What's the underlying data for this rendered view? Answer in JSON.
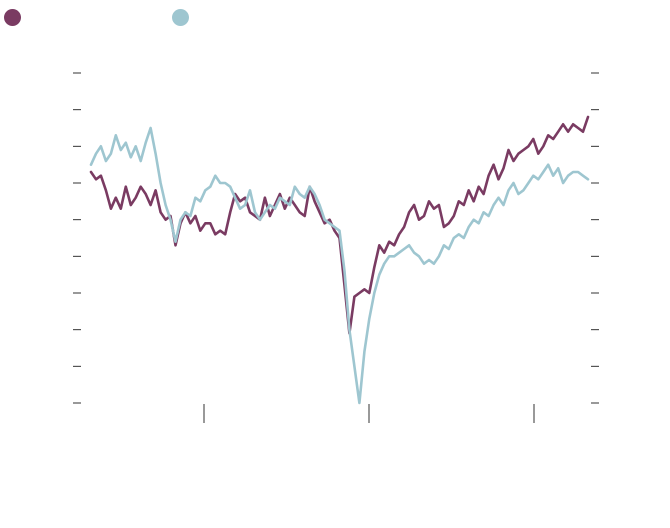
{
  "chart_data": {
    "type": "line",
    "title": "",
    "xlabel": "",
    "ylabel": "",
    "grid": false,
    "legend_position": "top-left",
    "x_ticks_count": 3,
    "y_ticks_count": 10,
    "xlim": [
      0,
      100
    ],
    "ylim": [
      0,
      9
    ],
    "series": [
      {
        "color": "#7a3b62",
        "x": [
          0,
          1,
          2,
          3,
          4,
          5,
          6,
          7,
          8,
          9,
          10,
          11,
          12,
          13,
          14,
          15,
          16,
          17,
          18,
          19,
          20,
          21,
          22,
          23,
          24,
          25,
          26,
          27,
          28,
          29,
          30,
          31,
          32,
          33,
          34,
          35,
          36,
          37,
          38,
          39,
          40,
          41,
          42,
          43,
          44,
          45,
          46,
          47,
          48,
          49,
          50,
          51,
          52,
          53,
          54,
          55,
          56,
          57,
          58,
          59,
          60,
          61,
          62,
          63,
          64,
          65,
          66,
          67,
          68,
          69,
          70,
          71,
          72,
          73,
          74,
          75,
          76,
          77,
          78,
          79,
          80,
          81,
          82,
          83,
          84,
          85,
          86,
          87,
          88,
          89,
          90,
          91,
          92,
          93,
          94,
          95,
          96,
          97,
          98,
          99,
          100
        ],
        "values": [
          6.3,
          6.1,
          6.2,
          5.8,
          5.3,
          5.6,
          5.3,
          5.9,
          5.4,
          5.6,
          5.9,
          5.7,
          5.4,
          5.8,
          5.2,
          5.0,
          5.1,
          4.3,
          4.9,
          5.2,
          4.9,
          5.1,
          4.7,
          4.9,
          4.9,
          4.6,
          4.7,
          4.6,
          5.2,
          5.7,
          5.5,
          5.6,
          5.2,
          5.1,
          5.0,
          5.6,
          5.1,
          5.4,
          5.7,
          5.3,
          5.6,
          5.4,
          5.2,
          5.1,
          5.9,
          5.5,
          5.2,
          4.9,
          5.0,
          4.7,
          4.5,
          3.2,
          1.9,
          2.9,
          3.0,
          3.1,
          3.0,
          3.7,
          4.3,
          4.1,
          4.4,
          4.3,
          4.6,
          4.8,
          5.2,
          5.4,
          5.0,
          5.1,
          5.5,
          5.3,
          5.4,
          4.8,
          4.9,
          5.1,
          5.5,
          5.4,
          5.8,
          5.5,
          5.9,
          5.7,
          6.2,
          6.5,
          6.1,
          6.4,
          6.9,
          6.6,
          6.8,
          6.9,
          7.0,
          7.2,
          6.8,
          7.0,
          7.3,
          7.2,
          7.4,
          7.6,
          7.4,
          7.6,
          7.5,
          7.4,
          7.8
        ]
      },
      {
        "color": "#9ec6d0",
        "x": [
          0,
          1,
          2,
          3,
          4,
          5,
          6,
          7,
          8,
          9,
          10,
          11,
          12,
          13,
          14,
          15,
          16,
          17,
          18,
          19,
          20,
          21,
          22,
          23,
          24,
          25,
          26,
          27,
          28,
          29,
          30,
          31,
          32,
          33,
          34,
          35,
          36,
          37,
          38,
          39,
          40,
          41,
          42,
          43,
          44,
          45,
          46,
          47,
          48,
          49,
          50,
          51,
          52,
          53,
          54,
          55,
          56,
          57,
          58,
          59,
          60,
          61,
          62,
          63,
          64,
          65,
          66,
          67,
          68,
          69,
          70,
          71,
          72,
          73,
          74,
          75,
          76,
          77,
          78,
          79,
          80,
          81,
          82,
          83,
          84,
          85,
          86,
          87,
          88,
          89,
          90,
          91,
          92,
          93,
          94,
          95,
          96,
          97,
          98,
          99,
          100
        ],
        "values": [
          6.5,
          6.8,
          7.0,
          6.6,
          6.8,
          7.3,
          6.9,
          7.1,
          6.7,
          7.0,
          6.6,
          7.1,
          7.5,
          6.8,
          6.0,
          5.4,
          5.0,
          4.4,
          5.0,
          5.2,
          5.1,
          5.6,
          5.5,
          5.8,
          5.9,
          6.2,
          6.0,
          6.0,
          5.9,
          5.6,
          5.3,
          5.4,
          5.8,
          5.2,
          5.0,
          5.2,
          5.4,
          5.3,
          5.6,
          5.5,
          5.4,
          5.9,
          5.7,
          5.6,
          5.9,
          5.7,
          5.4,
          5.0,
          4.9,
          4.8,
          4.7,
          3.6,
          2.0,
          1.0,
          0.0,
          1.4,
          2.3,
          3.0,
          3.5,
          3.8,
          4.0,
          4.0,
          4.1,
          4.2,
          4.3,
          4.1,
          4.0,
          3.8,
          3.9,
          3.8,
          4.0,
          4.3,
          4.2,
          4.5,
          4.6,
          4.5,
          4.8,
          5.0,
          4.9,
          5.2,
          5.1,
          5.4,
          5.6,
          5.4,
          5.8,
          6.0,
          5.7,
          5.8,
          6.0,
          6.2,
          6.1,
          6.3,
          6.5,
          6.2,
          6.4,
          6.0,
          6.2,
          6.3,
          6.3,
          6.2,
          6.1
        ]
      }
    ]
  }
}
